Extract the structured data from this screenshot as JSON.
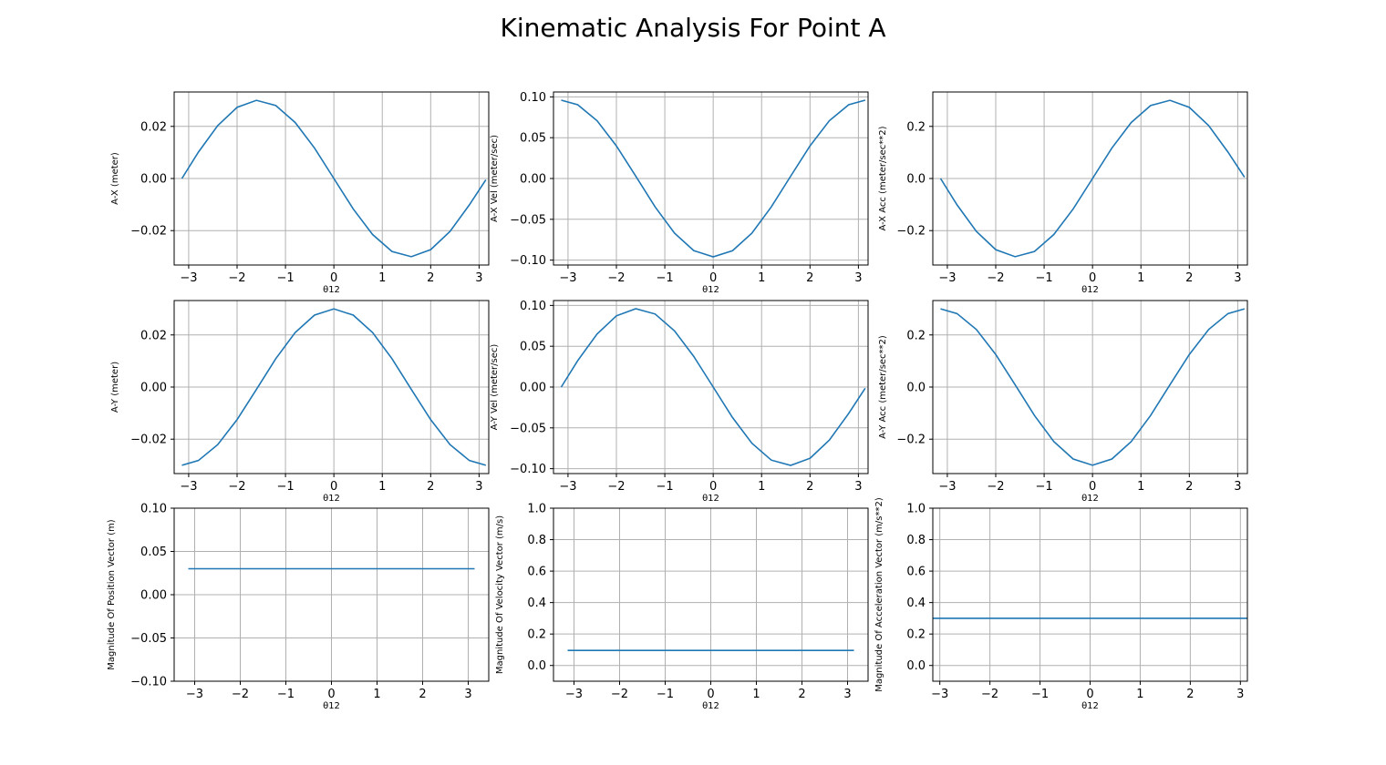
{
  "figure": {
    "title": "Kinematic Analysis For Point A",
    "line_color": "#1f77b4",
    "grid_color": "#b0b0b0"
  },
  "chart_data": [
    {
      "type": "line",
      "xlabel": "θ12",
      "ylabel": "A-X (meter)",
      "xlim": [
        -3.3,
        3.2
      ],
      "ylim": [
        -0.0332,
        0.0332
      ],
      "xticks": [
        -3,
        -2,
        -1,
        0,
        1,
        2,
        3
      ],
      "xtick_labels": [
        "−3",
        "−2",
        "−1",
        "0",
        "1",
        "2",
        "3"
      ],
      "yticks": [
        -0.02,
        0.0,
        0.02
      ],
      "ytick_labels": [
        "−0.02",
        "0.00",
        "0.02"
      ],
      "grid": true,
      "series": [
        {
          "x": [
            -3.14,
            -2.8,
            -2.4,
            -2.0,
            -1.6,
            -1.2,
            -0.8,
            -0.4,
            0.0,
            0.4,
            0.8,
            1.2,
            1.6,
            2.0,
            2.4,
            2.8,
            3.14
          ],
          "y": [
            0.0,
            0.0101,
            0.0203,
            0.0273,
            0.03,
            0.028,
            0.0215,
            0.0117,
            0.0,
            -0.0117,
            -0.0215,
            -0.028,
            -0.03,
            -0.0273,
            -0.0203,
            -0.0101,
            -0.0005
          ]
        }
      ]
    },
    {
      "type": "line",
      "xlabel": "θ12",
      "ylabel": "A-X Vel (meter/sec)",
      "xlim": [
        -3.3,
        3.2
      ],
      "ylim": [
        -0.106,
        0.106
      ],
      "xticks": [
        -3,
        -2,
        -1,
        0,
        1,
        2,
        3
      ],
      "xtick_labels": [
        "−3",
        "−2",
        "−1",
        "0",
        "1",
        "2",
        "3"
      ],
      "yticks": [
        -0.1,
        -0.05,
        0.0,
        0.05,
        0.1
      ],
      "ytick_labels": [
        "−0.10",
        "−0.05",
        "0.00",
        "0.05",
        "0.10"
      ],
      "grid": true,
      "series": [
        {
          "x": [
            -3.14,
            -2.8,
            -2.4,
            -2.0,
            -1.6,
            -1.2,
            -0.8,
            -0.4,
            0.0,
            0.4,
            0.8,
            1.2,
            1.6,
            2.0,
            2.4,
            2.8,
            3.14
          ],
          "y": [
            0.096,
            0.0904,
            0.0708,
            0.0399,
            0.0028,
            -0.0348,
            -0.0669,
            -0.0884,
            -0.096,
            -0.0884,
            -0.0669,
            -0.0348,
            0.0028,
            0.0399,
            0.0708,
            0.0904,
            0.096
          ]
        }
      ]
    },
    {
      "type": "line",
      "xlabel": "θ12",
      "ylabel": "A-X Acc (meter/sec**2)",
      "xlim": [
        -3.3,
        3.2
      ],
      "ylim": [
        -0.332,
        0.332
      ],
      "xticks": [
        -3,
        -2,
        -1,
        0,
        1,
        2,
        3
      ],
      "xtick_labels": [
        "−3",
        "−2",
        "−1",
        "0",
        "1",
        "2",
        "3"
      ],
      "yticks": [
        -0.2,
        0.0,
        0.2
      ],
      "ytick_labels": [
        "−0.2",
        "0.0",
        "0.2"
      ],
      "grid": true,
      "series": [
        {
          "x": [
            -3.14,
            -2.8,
            -2.4,
            -2.0,
            -1.6,
            -1.2,
            -0.8,
            -0.4,
            0.0,
            0.4,
            0.8,
            1.2,
            1.6,
            2.0,
            2.4,
            2.8,
            3.14
          ],
          "y": [
            0.0,
            -0.101,
            -0.203,
            -0.273,
            -0.3,
            -0.28,
            -0.215,
            -0.117,
            0.0,
            0.117,
            0.215,
            0.28,
            0.3,
            0.273,
            0.203,
            0.101,
            0.005
          ]
        }
      ]
    },
    {
      "type": "line",
      "xlabel": "θ12",
      "ylabel": "A-Y (meter)",
      "xlim": [
        -3.3,
        3.2
      ],
      "ylim": [
        -0.0332,
        0.0332
      ],
      "xticks": [
        -3,
        -2,
        -1,
        0,
        1,
        2,
        3
      ],
      "xtick_labels": [
        "−3",
        "−2",
        "−1",
        "0",
        "1",
        "2",
        "3"
      ],
      "yticks": [
        -0.02,
        0.0,
        0.02
      ],
      "ytick_labels": [
        "−0.02",
        "0.00",
        "0.02"
      ],
      "grid": true,
      "series": [
        {
          "x": [
            -3.14,
            -2.8,
            -2.4,
            -2.0,
            -1.6,
            -1.2,
            -0.8,
            -0.4,
            0.0,
            0.4,
            0.8,
            1.2,
            1.6,
            2.0,
            2.4,
            2.8,
            3.14
          ],
          "y": [
            -0.03,
            -0.0282,
            -0.0221,
            -0.0125,
            -0.0009,
            0.0109,
            0.0209,
            0.0276,
            0.03,
            0.0276,
            0.0209,
            0.0109,
            -0.0009,
            -0.0125,
            -0.0221,
            -0.0282,
            -0.03
          ]
        }
      ]
    },
    {
      "type": "line",
      "xlabel": "θ12",
      "ylabel": "A-Y Vel (meter/sec)",
      "xlim": [
        -3.3,
        3.2
      ],
      "ylim": [
        -0.106,
        0.106
      ],
      "xticks": [
        -3,
        -2,
        -1,
        0,
        1,
        2,
        3
      ],
      "xtick_labels": [
        "−3",
        "−2",
        "−1",
        "0",
        "1",
        "2",
        "3"
      ],
      "yticks": [
        -0.1,
        -0.05,
        0.0,
        0.05,
        0.1
      ],
      "ytick_labels": [
        "−0.10",
        "−0.05",
        "0.00",
        "0.05",
        "0.10"
      ],
      "grid": true,
      "series": [
        {
          "x": [
            -3.14,
            -2.8,
            -2.4,
            -2.0,
            -1.6,
            -1.2,
            -0.8,
            -0.4,
            0.0,
            0.4,
            0.8,
            1.2,
            1.6,
            2.0,
            2.4,
            2.8,
            3.14
          ],
          "y": [
            0.0,
            0.0323,
            0.065,
            0.0873,
            0.096,
            0.0895,
            0.0689,
            0.0374,
            0.0,
            -0.0374,
            -0.0689,
            -0.0895,
            -0.096,
            -0.0873,
            -0.065,
            -0.0323,
            -0.0015
          ]
        }
      ]
    },
    {
      "type": "line",
      "xlabel": "θ12",
      "ylabel": "A-Y Acc (meter/sec**2)",
      "xlim": [
        -3.3,
        3.2
      ],
      "ylim": [
        -0.332,
        0.332
      ],
      "xticks": [
        -3,
        -2,
        -1,
        0,
        1,
        2,
        3
      ],
      "xtick_labels": [
        "−3",
        "−2",
        "−1",
        "0",
        "1",
        "2",
        "3"
      ],
      "yticks": [
        -0.2,
        0.0,
        0.2
      ],
      "ytick_labels": [
        "−0.2",
        "0.0",
        "0.2"
      ],
      "grid": true,
      "series": [
        {
          "x": [
            -3.14,
            -2.8,
            -2.4,
            -2.0,
            -1.6,
            -1.2,
            -0.8,
            -0.4,
            0.0,
            0.4,
            0.8,
            1.2,
            1.6,
            2.0,
            2.4,
            2.8,
            3.14
          ],
          "y": [
            0.3,
            0.282,
            0.221,
            0.125,
            0.009,
            -0.109,
            -0.209,
            -0.276,
            -0.3,
            -0.276,
            -0.209,
            -0.109,
            0.009,
            0.125,
            0.221,
            0.282,
            0.3
          ]
        }
      ]
    },
    {
      "type": "line",
      "xlabel": "θ12",
      "ylabel": "Magnitude Of Position Vector (m)",
      "xlim": [
        -3.45,
        3.45
      ],
      "ylim": [
        -0.1,
        0.1
      ],
      "xticks": [
        -3,
        -2,
        -1,
        0,
        1,
        2,
        3
      ],
      "xtick_labels": [
        "−3",
        "−2",
        "−1",
        "0",
        "1",
        "2",
        "3"
      ],
      "yticks": [
        -0.1,
        -0.05,
        0.0,
        0.05,
        0.1
      ],
      "ytick_labels": [
        "−0.10",
        "−0.05",
        "0.00",
        "0.05",
        "0.10"
      ],
      "grid": true,
      "series": [
        {
          "x": [
            -3.14,
            3.14
          ],
          "y": [
            0.03,
            0.03
          ]
        }
      ]
    },
    {
      "type": "line",
      "xlabel": "θ12",
      "ylabel": "Magnitude Of Velocity Vector (m/s)",
      "xlim": [
        -3.45,
        3.45
      ],
      "ylim": [
        -0.1,
        1.0
      ],
      "xticks": [
        -3,
        -2,
        -1,
        0,
        1,
        2,
        3
      ],
      "xtick_labels": [
        "−3",
        "−2",
        "−1",
        "0",
        "1",
        "2",
        "3"
      ],
      "yticks": [
        0.0,
        0.2,
        0.4,
        0.6,
        0.8,
        1.0
      ],
      "ytick_labels": [
        "0.0",
        "0.2",
        "0.4",
        "0.6",
        "0.8",
        "1.0"
      ],
      "grid": true,
      "series": [
        {
          "x": [
            -3.14,
            3.14
          ],
          "y": [
            0.096,
            0.096
          ]
        }
      ]
    },
    {
      "type": "line",
      "xlabel": "θ12",
      "ylabel": "Magnitude Of Acceleration Vector (m/s**2)",
      "xlim": [
        -3.14,
        3.14
      ],
      "ylim": [
        -0.1,
        1.0
      ],
      "xticks": [
        -3,
        -2,
        -1,
        0,
        1,
        2,
        3
      ],
      "xtick_labels": [
        "−3",
        "−2",
        "−1",
        "0",
        "1",
        "2",
        "3"
      ],
      "yticks": [
        0.0,
        0.2,
        0.4,
        0.6,
        0.8,
        1.0
      ],
      "ytick_labels": [
        "0.0",
        "0.2",
        "0.4",
        "0.6",
        "0.8",
        "1.0"
      ],
      "grid": true,
      "series": [
        {
          "x": [
            -3.14,
            3.14
          ],
          "y": [
            0.3,
            0.3
          ]
        }
      ]
    }
  ]
}
